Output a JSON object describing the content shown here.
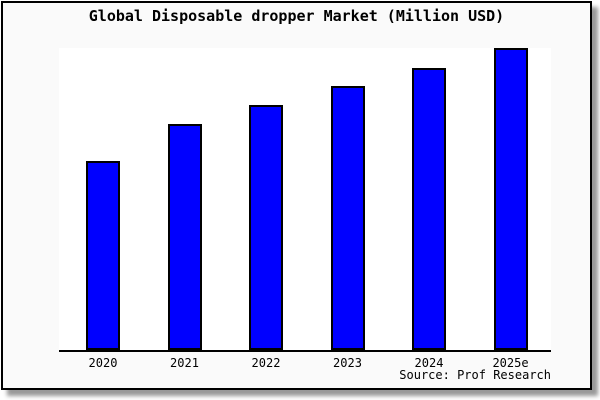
{
  "chart_data": {
    "type": "bar",
    "title": "Global Disposable dropper Market (Million USD)",
    "categories": [
      "2020",
      "2021",
      "2022",
      "2023",
      "2024",
      "2025e"
    ],
    "values": [
      62.6,
      74.8,
      81.1,
      87.4,
      93.4,
      100
    ],
    "values_note": "y-axis has no tick labels; values are relative estimates read from bar heights with tallest bar (2025e) = 100",
    "xlabel": "",
    "ylabel": "",
    "ylim": [
      0,
      100
    ],
    "grid": false,
    "legend": null,
    "bar_count": 6
  },
  "source": {
    "label": "Source: Prof Research"
  },
  "colors": {
    "bar_fill": "#0000ff",
    "bar_border": "#000000",
    "figure_bg": "#fafafa",
    "plot_bg": "#ffffff",
    "frame_border": "#000000",
    "axis": "#000000",
    "text": "#000000",
    "shadow": "#999999"
  }
}
